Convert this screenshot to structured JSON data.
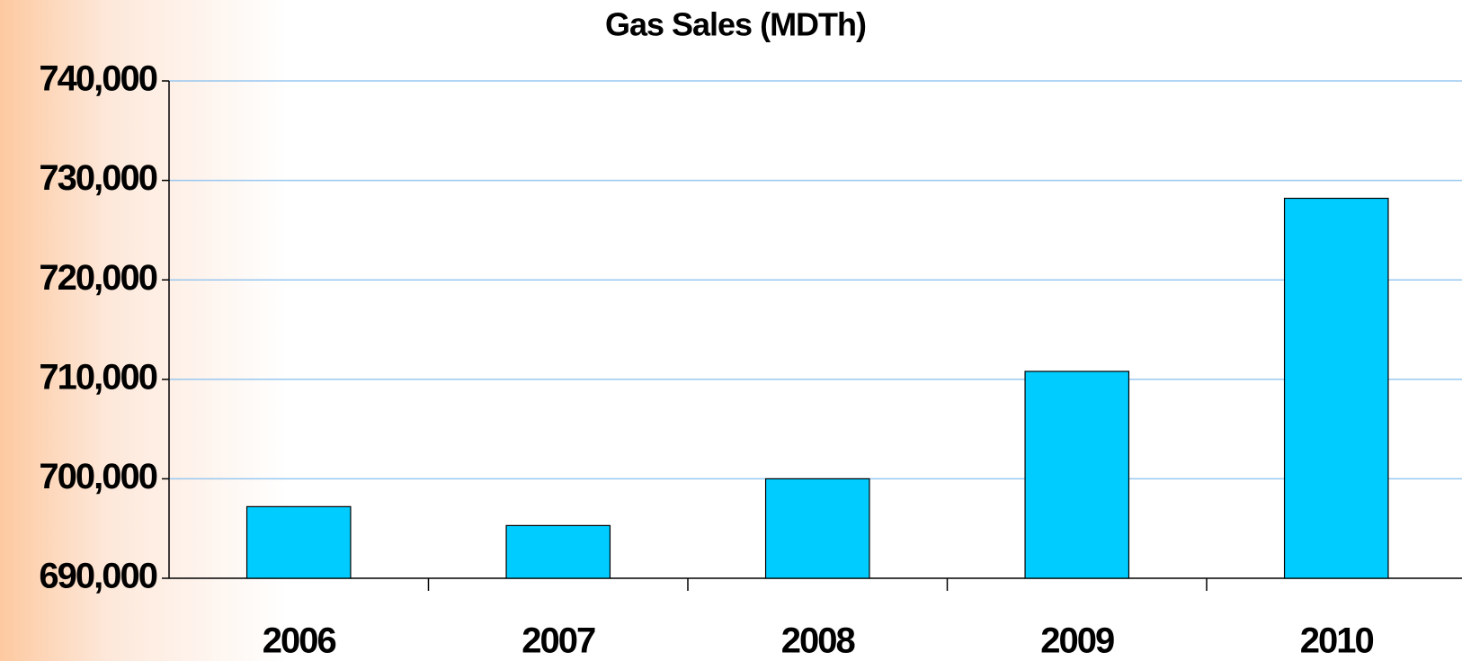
{
  "chart_data": {
    "type": "bar",
    "title": "Gas Sales (MDTh)",
    "categories": [
      "2006",
      "2007",
      "2008",
      "2009",
      "2010"
    ],
    "values": [
      697200,
      695300,
      700000,
      710800,
      728200
    ],
    "color": "#00ccff",
    "ylim": [
      690000,
      740000
    ],
    "yticks": [
      {
        "value": 690000,
        "label": "690,000"
      },
      {
        "value": 700000,
        "label": "700,000"
      },
      {
        "value": 710000,
        "label": "710,000"
      },
      {
        "value": 720000,
        "label": "720,000"
      },
      {
        "value": 730000,
        "label": "730,000"
      },
      {
        "value": 740000,
        "label": "740,000"
      }
    ],
    "grid": true
  }
}
